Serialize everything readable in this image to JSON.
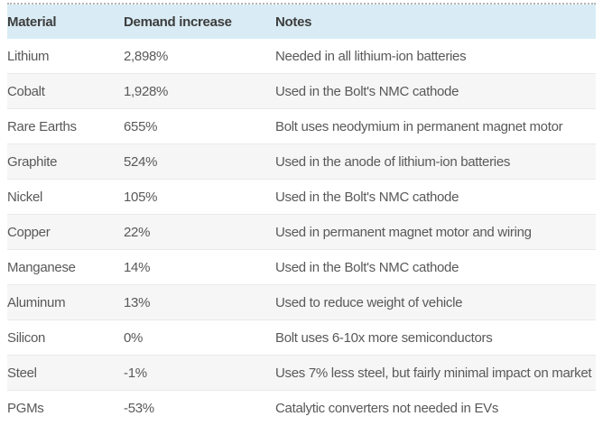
{
  "chart_data": {
    "type": "table",
    "title": "",
    "columns": [
      "Material",
      "Demand increase",
      "Notes"
    ],
    "materials": [
      "Lithium",
      "Cobalt",
      "Rare Earths",
      "Graphite",
      "Nickel",
      "Copper",
      "Manganese",
      "Aluminum",
      "Silicon",
      "Steel",
      "PGMs"
    ],
    "demand_increase_percent": [
      2898,
      1928,
      655,
      524,
      105,
      22,
      14,
      13,
      0,
      -1,
      -53
    ]
  },
  "table": {
    "columns": [
      {
        "key": "material",
        "label": "Material"
      },
      {
        "key": "demand",
        "label": "Demand increase"
      },
      {
        "key": "notes",
        "label": "Notes"
      }
    ],
    "rows": [
      {
        "material": "Lithium",
        "demand": "2,898%",
        "notes": "Needed in all lithium-ion batteries"
      },
      {
        "material": "Cobalt",
        "demand": "1,928%",
        "notes": "Used in the Bolt's NMC cathode"
      },
      {
        "material": "Rare Earths",
        "demand": "655%",
        "notes": "Bolt uses neodymium in permanent magnet motor"
      },
      {
        "material": "Graphite",
        "demand": "524%",
        "notes": "Used in the anode of lithium-ion batteries"
      },
      {
        "material": "Nickel",
        "demand": "105%",
        "notes": "Used in the Bolt's NMC cathode"
      },
      {
        "material": "Copper",
        "demand": "22%",
        "notes": "Used in permanent magnet motor and wiring"
      },
      {
        "material": "Manganese",
        "demand": "14%",
        "notes": "Used in the Bolt's NMC cathode"
      },
      {
        "material": "Aluminum",
        "demand": "13%",
        "notes": "Used to reduce weight of vehicle"
      },
      {
        "material": "Silicon",
        "demand": "0%",
        "notes": "Bolt uses 6-10x more semiconductors"
      },
      {
        "material": "Steel",
        "demand": "-1%",
        "notes": "Uses 7% less steel, but fairly minimal impact on market"
      },
      {
        "material": "PGMs",
        "demand": "-53%",
        "notes": "Catalytic converters not needed in EVs"
      }
    ],
    "colors": {
      "header_bg": "#d9ecf5",
      "header_text": "#3d3d3d",
      "body_text": "#59595b",
      "row_alt_bg": "#f6f6f6",
      "separator": "#e9e9e9",
      "top_border": "#b5b5b5"
    }
  }
}
